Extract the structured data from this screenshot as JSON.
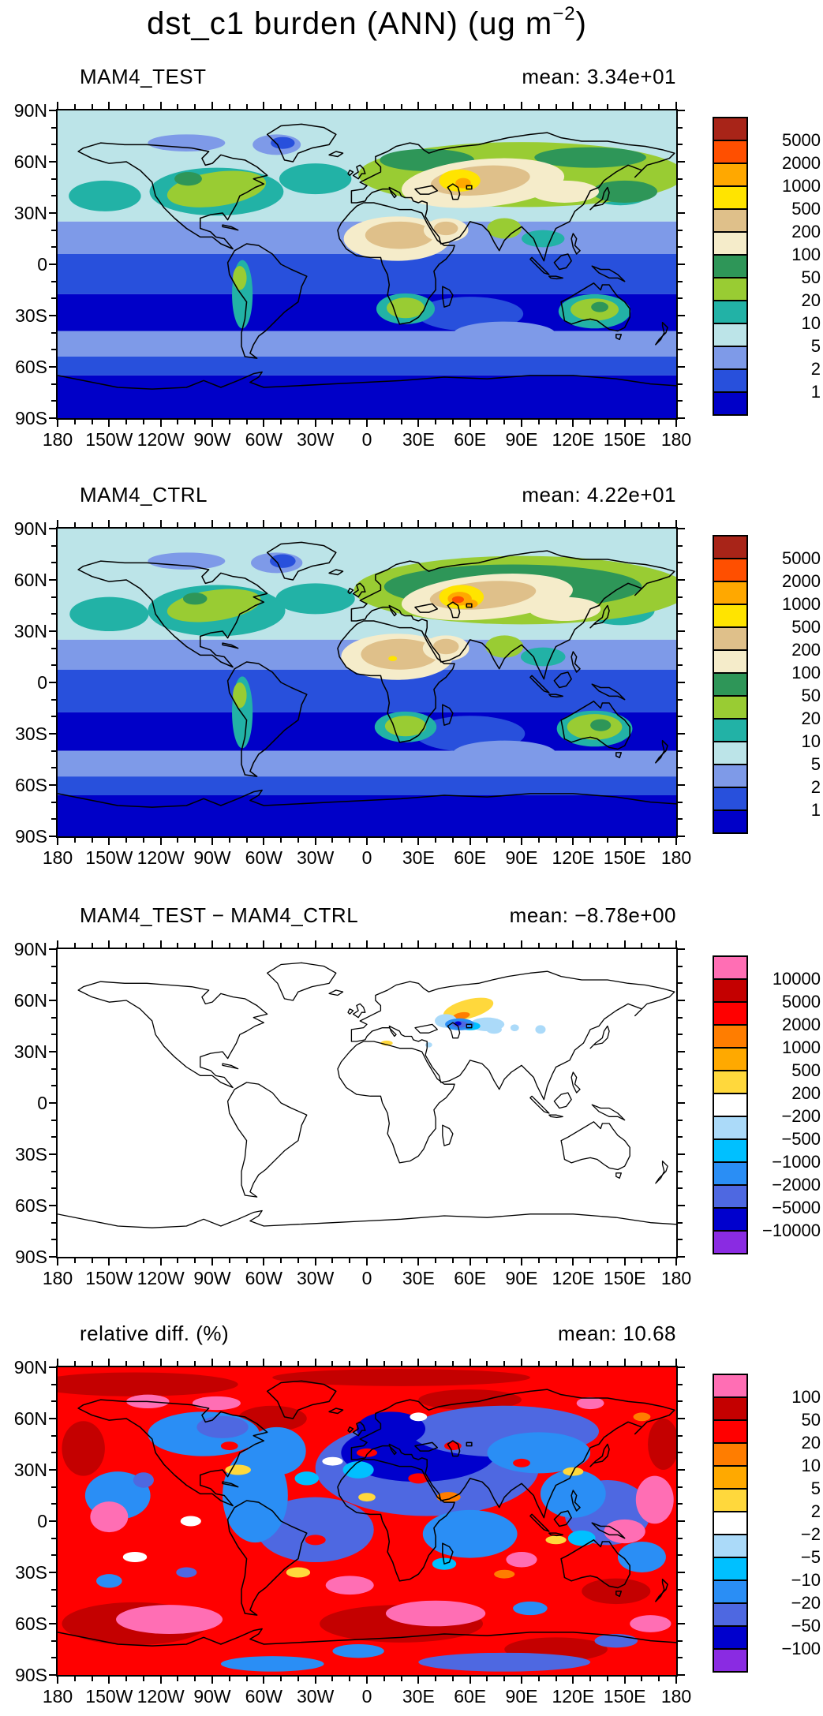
{
  "title": {
    "text": "dst_c1 burden (ANN) (ug m",
    "exponent": "−2",
    "close": ")"
  },
  "axes": {
    "lat_labels": [
      "90N",
      "60N",
      "30N",
      "0",
      "30S",
      "60S",
      "90S"
    ],
    "lon_labels": [
      "180",
      "150W",
      "120W",
      "90W",
      "60W",
      "30W",
      "0",
      "30E",
      "60E",
      "90E",
      "120E",
      "150E",
      "180"
    ]
  },
  "palettes": {
    "burden": {
      "colors": [
        "#a82418",
        "#ff4f00",
        "#ffa800",
        "#ffe400",
        "#dfc08a",
        "#f5ecca",
        "#2e9658",
        "#99cc33",
        "#22b2a6",
        "#bce4e8",
        "#7e9ae8",
        "#2850dc",
        "#0000c8"
      ]
    },
    "anomaly": {
      "colors": [
        "#ff6eb4",
        "#c40000",
        "#ff0000",
        "#ff7d00",
        "#ffa900",
        "#ffd83c",
        "#ffffff",
        "#abdaf9",
        "#00c0ff",
        "#2a8ef5",
        "#4e68e1",
        "#0000cd",
        "#8a2be2"
      ]
    }
  },
  "chart_data": {
    "type": "heatmap",
    "subtype": "filled-contour-world-map-panels",
    "projection": "equirectangular",
    "variable": "dst_c1 burden",
    "season": "ANN",
    "units": "ug m-2",
    "lat_range": [
      -90,
      90
    ],
    "lon_range": [
      -180,
      180
    ],
    "major_tick_interval_deg": 30,
    "minor_tick_interval_deg": 10,
    "panels": [
      {
        "title": "MAM4_TEST",
        "mean_text": "mean: 3.34e+01",
        "mean_value": 33.4,
        "palette": "burden",
        "levels": [
          1,
          2,
          5,
          10,
          20,
          50,
          100,
          200,
          500,
          1000,
          2000,
          5000
        ],
        "colorbar_labels": [
          "5000",
          "2000",
          "1000",
          "500",
          "200",
          "100",
          "50",
          "20",
          "10",
          "5",
          "2",
          "1"
        ],
        "field_summary": "Dust burden maximum (200-1000, peak 1000-2000) over central Asia near the Caspian/Aral region; 100-500 over Sahara, Arabia and Gobi; 20-100 over mid-latitude continents; oceans 1-10 falling below 1 over the Southern Ocean and southern subtropical basins."
      },
      {
        "title": "MAM4_CTRL",
        "mean_text": "mean: 4.22e+01",
        "mean_value": 42.2,
        "palette": "burden",
        "levels": [
          1,
          2,
          5,
          10,
          20,
          50,
          100,
          200,
          500,
          1000,
          2000,
          5000
        ],
        "colorbar_labels": [
          "5000",
          "2000",
          "1000",
          "500",
          "200",
          "100",
          "50",
          "20",
          "10",
          "5",
          "2",
          "1"
        ],
        "field_summary": "Same pattern as MAM4_TEST but stronger: central Asian hotspot reaches 2000-5000 (orange/red core near the Aral/Caspian), broader 200-500 belt across Eurasia, slightly higher values over Australia and southern Africa."
      },
      {
        "title": "MAM4_TEST − MAM4_CTRL",
        "mean_text": "mean: −8.78e+00",
        "mean_value": -8.78,
        "palette": "anomaly",
        "levels": [
          -10000,
          -5000,
          -2000,
          -1000,
          -500,
          -200,
          200,
          500,
          1000,
          2000,
          5000,
          10000
        ],
        "colorbar_labels": [
          "10000",
          "5000",
          "2000",
          "1000",
          "500",
          "200",
          "−200",
          "−500",
          "−1000",
          "−2000",
          "−5000",
          "−10000"
        ],
        "field_summary": "Differences within -200..200 (white) almost everywhere; positive patch 200-1000 north of the Aral Sea (~50-70E, 50-57N), negative patches -200..-2000 just south/east of the Aral/Caspian (~52-75E, 40-48N); a few small spots over central Asia, north China and the Tunisian coast."
      },
      {
        "title": "relative diff. (%)",
        "mean_text": "mean: 10.68",
        "mean_value": 10.68,
        "palette": "anomaly",
        "levels": [
          -100,
          -50,
          -20,
          -10,
          -5,
          -2,
          2,
          5,
          10,
          20,
          50,
          100
        ],
        "colorbar_labels": [
          "100",
          "50",
          "20",
          "10",
          "5",
          "2",
          "−2",
          "−5",
          "−10",
          "−20",
          "−50",
          "−100"
        ],
        "field_summary": "Noisy field: strong negative (-20..-100, blue) over the dust belt from North Africa through central Asia, Europe and much of the northern continents; strong positive (20..>100, red/pink) over most oceans, the Southern Ocean storm track (pink >100 patches) and high southern latitudes; alternating red/blue mottling elsewhere."
      }
    ]
  }
}
